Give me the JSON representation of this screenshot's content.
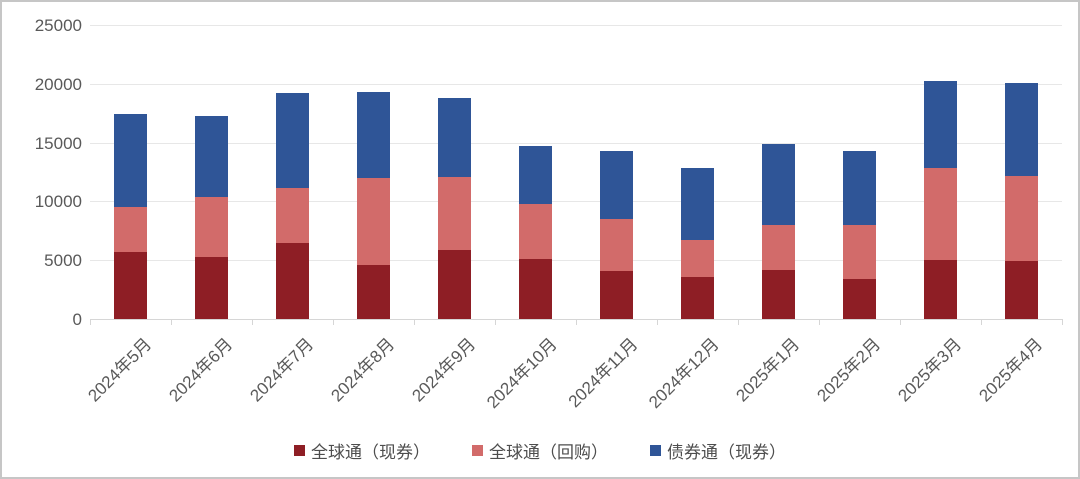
{
  "page": {
    "background": "#ffffff",
    "frame_border_color": "#c6c6c6"
  },
  "chart_data": {
    "type": "bar",
    "stacked": true,
    "title": "",
    "xlabel": "",
    "ylabel": "",
    "grid": true,
    "legend_position": "bottom",
    "categories": [
      "2024年5月",
      "2024年6月",
      "2024年7月",
      "2024年8月",
      "2024年9月",
      "2024年10月",
      "2024年11月",
      "2024年12月",
      "2025年1月",
      "2025年2月",
      "2025年3月",
      "2025年4月"
    ],
    "series": [
      {
        "name": "全球通（现券）",
        "color": "#8E1E25",
        "values": [
          5700,
          5300,
          6500,
          4600,
          5900,
          5100,
          4100,
          3600,
          4200,
          3400,
          5000,
          4900
        ]
      },
      {
        "name": "全球通（回购）",
        "color": "#D26B6A",
        "values": [
          3800,
          5100,
          4600,
          7400,
          6200,
          4700,
          4400,
          3100,
          3800,
          4600,
          7800,
          7300
        ]
      },
      {
        "name": "债券通（现券）",
        "color": "#2F5597",
        "values": [
          7900,
          6900,
          8100,
          7300,
          6700,
          4900,
          5800,
          6100,
          6900,
          6300,
          7400,
          7900
        ]
      }
    ],
    "stack_totals": [
      17400,
      17300,
      19200,
      19300,
      18800,
      14700,
      14300,
      12800,
      14900,
      14300,
      20200,
      20100
    ],
    "y_axis": {
      "min": 0,
      "max": 25000,
      "step": 5000,
      "tick_labels": [
        "0",
        "5000",
        "10000",
        "15000",
        "20000",
        "25000"
      ]
    },
    "colors": {
      "axis_label": "#595959",
      "legend_label": "#4d4d4d",
      "gridline": "#e7e7e7",
      "axis_line": "#d6d6d6"
    }
  }
}
